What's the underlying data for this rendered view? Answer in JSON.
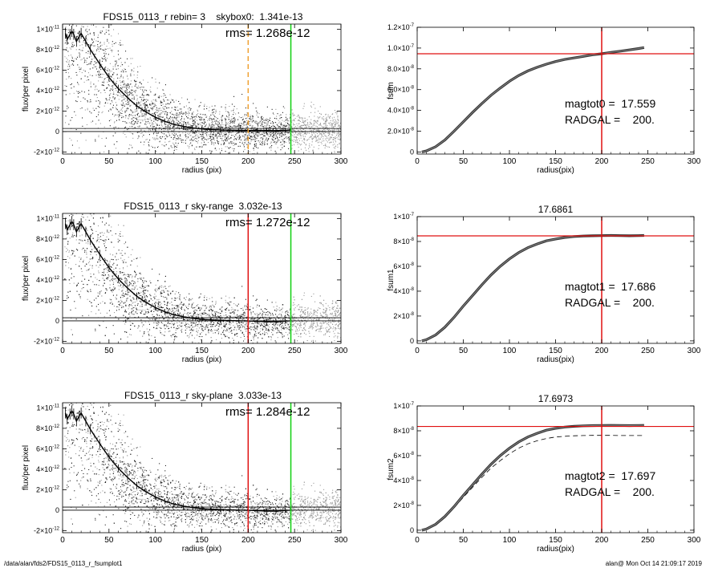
{
  "footer": {
    "path": "/data/alan/fds2/FDS15_0113_r_fsumplot1",
    "user_date": "alan@  Mon Oct 14 21:09:17 2019"
  },
  "colors": {
    "red": "#e01010",
    "green": "#10d010",
    "orange": "#f0a030",
    "scatter_light": "#9a9a9a",
    "scatter_dark": "#222222"
  },
  "chart_data": [
    {
      "id": "profile_skybox",
      "type": "scatter",
      "title": "FDS15_0113_r rebin= 3    skybox0:  1.341e-13",
      "annotation": "rms= 1.268e-12",
      "xlabel": "radius (pix)",
      "ylabel": "flux/per pixel",
      "xlim": [
        0,
        300
      ],
      "ylim": [
        -2.2e-12,
        1.05e-11
      ],
      "xticks": [
        "0",
        "50",
        "100",
        "150",
        "200",
        "250",
        "300"
      ],
      "yticks": [
        {
          "v": 1e-11,
          "m": "1×10",
          "e": "-11"
        },
        {
          "v": 8e-12,
          "m": "8×10",
          "e": "-12"
        },
        {
          "v": 6e-12,
          "m": "6×10",
          "e": "-12"
        },
        {
          "v": 4e-12,
          "m": "4×10",
          "e": "-12"
        },
        {
          "v": 2e-12,
          "m": "2×10",
          "e": "-12"
        },
        {
          "v": 0,
          "m": "0",
          "e": ""
        },
        {
          "v": -2e-12,
          "m": "-2×10",
          "e": "-12"
        }
      ],
      "vlines": [
        {
          "x": 200,
          "color": "orange",
          "dashed": true
        },
        {
          "x": 246,
          "color": "green",
          "dashed": false
        }
      ],
      "hlines": [
        0.0,
        3e-13
      ],
      "sky": 1.341e-13,
      "profile": {
        "x": [
          3,
          5,
          8,
          10,
          12,
          15,
          18,
          20,
          25,
          30,
          40,
          50,
          60,
          70,
          80,
          90,
          100,
          110,
          120,
          130,
          140,
          150,
          160,
          170,
          180,
          190,
          200,
          210,
          220,
          230,
          240,
          246
        ],
        "y": [
          9.6e-12,
          9e-12,
          9.5e-12,
          9.8e-12,
          9.5e-12,
          8.8e-12,
          9.3e-12,
          9.6e-12,
          8.8e-12,
          8e-12,
          6.6e-12,
          5.3e-12,
          4.2e-12,
          3.3e-12,
          2.5e-12,
          1.9e-12,
          1.4e-12,
          1e-12,
          7e-13,
          5e-13,
          3.5e-13,
          2.5e-13,
          2e-13,
          1.6e-13,
          1.3e-13,
          1.1e-13,
          1e-13,
          1.2e-13,
          1e-13,
          9e-14,
          1.2e-13,
          1.5e-13
        ]
      }
    },
    {
      "id": "fsum0",
      "type": "line",
      "title": "",
      "xlabel": "radius(pix)",
      "ylabel": "fsum",
      "xlim": [
        0,
        300
      ],
      "ylim": [
        -2e-09,
        1.2e-07
      ],
      "xticks": [
        "0",
        "50",
        "100",
        "150",
        "200",
        "250",
        "300"
      ],
      "yticks": [
        {
          "v": 1.2e-07,
          "m": "1.2×10",
          "e": "-7"
        },
        {
          "v": 1e-07,
          "m": "1.0×10",
          "e": "-7"
        },
        {
          "v": 8e-08,
          "m": "8.0×10",
          "e": "-8"
        },
        {
          "v": 6e-08,
          "m": "6.0×10",
          "e": "-8"
        },
        {
          "v": 4e-08,
          "m": "4.0×10",
          "e": "-8"
        },
        {
          "v": 2e-08,
          "m": "2.0×10",
          "e": "-8"
        },
        {
          "v": 0,
          "m": "0",
          "e": ""
        }
      ],
      "vline_x": 200,
      "hline_y": 9.45e-08,
      "curve": {
        "x": [
          5,
          10,
          20,
          30,
          40,
          50,
          60,
          70,
          80,
          90,
          100,
          110,
          120,
          130,
          140,
          150,
          160,
          170,
          180,
          190,
          200,
          210,
          220,
          230,
          240,
          246
        ],
        "y": [
          0,
          1e-09,
          5e-09,
          1.15e-08,
          2e-08,
          2.9e-08,
          3.8e-08,
          4.65e-08,
          5.45e-08,
          6.15e-08,
          6.8e-08,
          7.35e-08,
          7.8e-08,
          8.15e-08,
          8.45e-08,
          8.7e-08,
          8.9e-08,
          9.05e-08,
          9.2e-08,
          9.35e-08,
          9.45e-08,
          9.58e-08,
          9.7e-08,
          9.82e-08,
          9.95e-08,
          1.005e-07
        ]
      },
      "annotations": [
        "magtot0 =  17.559",
        "RADGAL =    200."
      ]
    },
    {
      "id": "profile_skyrange",
      "type": "scatter",
      "title": "FDS15_0113_r sky-range  3.032e-13",
      "annotation": "rms= 1.272e-12",
      "xlabel": "radius (pix)",
      "ylabel": "flux/per pixel",
      "xlim": [
        0,
        300
      ],
      "ylim": [
        -2.2e-12,
        1.05e-11
      ],
      "xticks": [
        "0",
        "50",
        "100",
        "150",
        "200",
        "250",
        "300"
      ],
      "yticks": [
        {
          "v": 1e-11,
          "m": "1×10",
          "e": "-11"
        },
        {
          "v": 8e-12,
          "m": "8×10",
          "e": "-12"
        },
        {
          "v": 6e-12,
          "m": "6×10",
          "e": "-12"
        },
        {
          "v": 4e-12,
          "m": "4×10",
          "e": "-12"
        },
        {
          "v": 2e-12,
          "m": "2×10",
          "e": "-12"
        },
        {
          "v": 0,
          "m": "0",
          "e": ""
        },
        {
          "v": -2e-12,
          "m": "-2×10",
          "e": "-12"
        }
      ],
      "vlines": [
        {
          "x": 200,
          "color": "red",
          "dashed": false
        },
        {
          "x": 246,
          "color": "green",
          "dashed": false
        }
      ],
      "hlines": [
        0.0,
        3.032e-13
      ],
      "sky": 3.032e-13,
      "profile": {
        "x": [
          3,
          5,
          8,
          10,
          12,
          15,
          18,
          20,
          25,
          30,
          40,
          50,
          60,
          70,
          80,
          90,
          100,
          110,
          120,
          130,
          140,
          150,
          160,
          170,
          180,
          190,
          200,
          210,
          220,
          230,
          240,
          246
        ],
        "y": [
          9.5e-12,
          8.9e-12,
          9.4e-12,
          9.7e-12,
          9.4e-12,
          8.7e-12,
          9.2e-12,
          9.5e-12,
          8.7e-12,
          7.9e-12,
          6.5e-12,
          5.2e-12,
          4.1e-12,
          3.2e-12,
          2.4e-12,
          1.8e-12,
          1.3e-12,
          9e-13,
          6e-13,
          4e-13,
          2.5e-13,
          1.5e-13,
          1e-13,
          6e-14,
          3e-14,
          1e-14,
          -1e-14,
          -5e-14,
          -8e-14,
          -1e-13,
          -2e-14,
          0.0
        ]
      }
    },
    {
      "id": "fsum1",
      "type": "line",
      "title": "17.6861",
      "xlabel": "radius(pix)",
      "ylabel": "fsum1",
      "xlim": [
        0,
        300
      ],
      "ylim": [
        -2e-09,
        1e-07
      ],
      "xticks": [
        "0",
        "50",
        "100",
        "150",
        "200",
        "250",
        "300"
      ],
      "yticks": [
        {
          "v": 1e-07,
          "m": "1×10",
          "e": "-7"
        },
        {
          "v": 8e-08,
          "m": "8×10",
          "e": "-8"
        },
        {
          "v": 6e-08,
          "m": "6×10",
          "e": "-8"
        },
        {
          "v": 4e-08,
          "m": "4×10",
          "e": "-8"
        },
        {
          "v": 2e-08,
          "m": "2×10",
          "e": "-8"
        },
        {
          "v": 0,
          "m": "0",
          "e": ""
        }
      ],
      "vline_x": 200,
      "hline_y": 8.45e-08,
      "curve": {
        "x": [
          5,
          10,
          20,
          30,
          40,
          50,
          60,
          70,
          80,
          90,
          100,
          110,
          120,
          130,
          140,
          150,
          160,
          170,
          180,
          190,
          200,
          210,
          220,
          230,
          240,
          246
        ],
        "y": [
          0,
          1e-09,
          4.8e-09,
          1.1e-08,
          1.9e-08,
          2.8e-08,
          3.65e-08,
          4.5e-08,
          5.3e-08,
          6e-08,
          6.6e-08,
          7.1e-08,
          7.5e-08,
          7.8e-08,
          8.05e-08,
          8.2e-08,
          8.32e-08,
          8.4e-08,
          8.44e-08,
          8.46e-08,
          8.47e-08,
          8.48e-08,
          8.47e-08,
          8.46e-08,
          8.47e-08,
          8.48e-08
        ]
      },
      "annotations": [
        "magtot1 =  17.686",
        "RADGAL =    200."
      ]
    },
    {
      "id": "profile_skyplane",
      "type": "scatter",
      "title": "FDS15_0113_r sky-plane  3.033e-13",
      "annotation": "rms= 1.284e-12",
      "xlabel": "radius (pix)",
      "ylabel": "flux/per pixel",
      "xlim": [
        0,
        300
      ],
      "ylim": [
        -2.2e-12,
        1.05e-11
      ],
      "xticks": [
        "0",
        "50",
        "100",
        "150",
        "200",
        "250",
        "300"
      ],
      "yticks": [
        {
          "v": 1e-11,
          "m": "1×10",
          "e": "-11"
        },
        {
          "v": 8e-12,
          "m": "8×10",
          "e": "-12"
        },
        {
          "v": 6e-12,
          "m": "6×10",
          "e": "-12"
        },
        {
          "v": 4e-12,
          "m": "4×10",
          "e": "-12"
        },
        {
          "v": 2e-12,
          "m": "2×10",
          "e": "-12"
        },
        {
          "v": 0,
          "m": "0",
          "e": ""
        },
        {
          "v": -2e-12,
          "m": "-2×10",
          "e": "-12"
        }
      ],
      "vlines": [
        {
          "x": 200,
          "color": "red",
          "dashed": false
        },
        {
          "x": 246,
          "color": "green",
          "dashed": false
        }
      ],
      "hlines": [
        0.0,
        3.033e-13
      ],
      "sky": 3.033e-13,
      "profile": {
        "x": [
          3,
          5,
          8,
          10,
          12,
          15,
          18,
          20,
          25,
          30,
          40,
          50,
          60,
          70,
          80,
          90,
          100,
          110,
          120,
          130,
          140,
          150,
          160,
          170,
          180,
          190,
          200,
          210,
          220,
          230,
          240,
          246
        ],
        "y": [
          9.5e-12,
          8.9e-12,
          9.4e-12,
          9.7e-12,
          9.4e-12,
          8.7e-12,
          9.2e-12,
          9.5e-12,
          8.7e-12,
          7.9e-12,
          6.5e-12,
          5.2e-12,
          4.1e-12,
          3.2e-12,
          2.4e-12,
          1.8e-12,
          1.3e-12,
          9e-13,
          6e-13,
          4e-13,
          2.5e-13,
          1.5e-13,
          1e-13,
          6e-14,
          3e-14,
          1e-14,
          -1e-14,
          -5e-14,
          -8e-14,
          -1e-13,
          -2e-14,
          0.0
        ]
      }
    },
    {
      "id": "fsum2",
      "type": "line",
      "title": "17.6973",
      "xlabel": "radius(pix)",
      "ylabel": "fsum2",
      "xlim": [
        0,
        300
      ],
      "ylim": [
        -2e-09,
        1e-07
      ],
      "xticks": [
        "0",
        "50",
        "100",
        "150",
        "200",
        "250",
        "300"
      ],
      "yticks": [
        {
          "v": 1e-07,
          "m": "1×10",
          "e": "-7"
        },
        {
          "v": 8e-08,
          "m": "8×10",
          "e": "-8"
        },
        {
          "v": 6e-08,
          "m": "6×10",
          "e": "-8"
        },
        {
          "v": 4e-08,
          "m": "4×10",
          "e": "-8"
        },
        {
          "v": 2e-08,
          "m": "2×10",
          "e": "-8"
        },
        {
          "v": 0,
          "m": "0",
          "e": ""
        }
      ],
      "vline_x": 200,
      "hline_y": 8.35e-08,
      "curve": {
        "x": [
          5,
          10,
          20,
          30,
          40,
          50,
          60,
          70,
          80,
          90,
          100,
          110,
          120,
          130,
          140,
          150,
          160,
          170,
          180,
          190,
          200,
          210,
          220,
          230,
          240,
          246
        ],
        "y": [
          0,
          1e-09,
          4.8e-09,
          1.1e-08,
          1.9e-08,
          2.8e-08,
          3.65e-08,
          4.5e-08,
          5.3e-08,
          6e-08,
          6.6e-08,
          7.1e-08,
          7.5e-08,
          7.8e-08,
          8.05e-08,
          8.2e-08,
          8.3e-08,
          8.36e-08,
          8.4e-08,
          8.42e-08,
          8.43e-08,
          8.44e-08,
          8.43e-08,
          8.42e-08,
          8.43e-08,
          8.44e-08
        ]
      },
      "curve_dashed": {
        "x": [
          5,
          10,
          20,
          30,
          40,
          50,
          60,
          70,
          80,
          90,
          100,
          110,
          120,
          130,
          140,
          150,
          160,
          170,
          180,
          190,
          200,
          210,
          220,
          230,
          240,
          246
        ],
        "y": [
          0,
          1e-09,
          4.6e-09,
          1.05e-08,
          1.8e-08,
          2.65e-08,
          3.45e-08,
          4.25e-08,
          5e-08,
          5.6e-08,
          6.15e-08,
          6.6e-08,
          6.95e-08,
          7.2e-08,
          7.38e-08,
          7.5e-08,
          7.56e-08,
          7.6e-08,
          7.62e-08,
          7.63e-08,
          7.63e-08,
          7.63e-08,
          7.62e-08,
          7.62e-08,
          7.62e-08,
          7.62e-08
        ]
      },
      "annotations": [
        "magtot2 =  17.697",
        "RADGAL =    200."
      ]
    }
  ]
}
